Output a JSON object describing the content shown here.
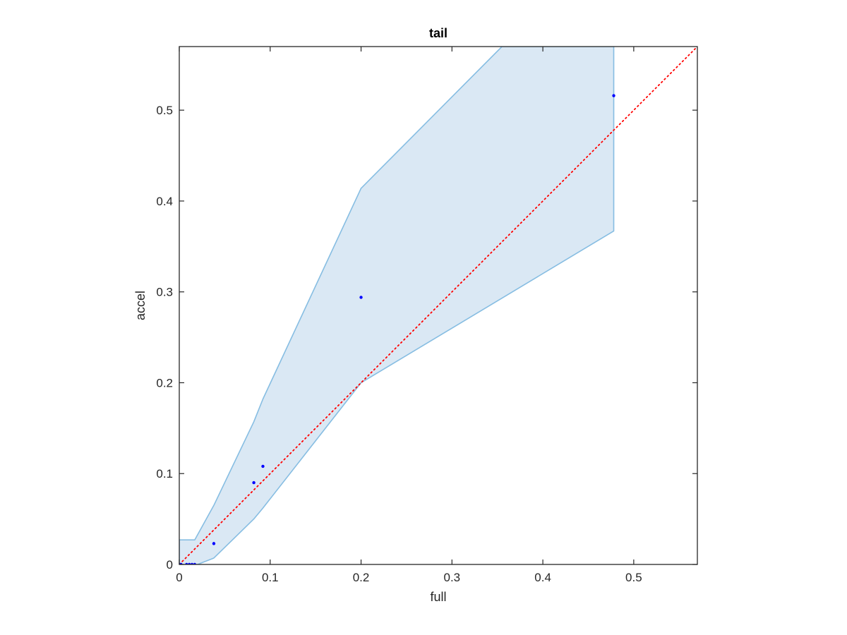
{
  "chart_data": {
    "type": "scatter",
    "title": "tail",
    "xlabel": "full",
    "ylabel": "accel",
    "xlim": [
      0,
      0.57
    ],
    "ylim": [
      0,
      0.57
    ],
    "xticks": [
      0,
      0.1,
      0.2,
      0.3,
      0.4,
      0.5
    ],
    "yticks": [
      0,
      0.1,
      0.2,
      0.3,
      0.4,
      0.5
    ],
    "xtick_labels": [
      "0",
      "0.1",
      "0.2",
      "0.3",
      "0.4",
      "0.5"
    ],
    "ytick_labels": [
      "0",
      "0.1",
      "0.2",
      "0.3",
      "0.4",
      "0.5"
    ],
    "grid": false,
    "colors": {
      "points": "#0000ff",
      "band_fill": "#dae8f4",
      "band_edge": "#86bde2",
      "diagonal": "#ff0000",
      "axes": "#262626"
    },
    "points": {
      "x": [
        0,
        0.002,
        0.008,
        0.011,
        0.014,
        0.017,
        0.038,
        0.082,
        0.092,
        0.2,
        0.478
      ],
      "y": [
        0,
        0,
        0,
        0,
        0,
        0,
        0.023,
        0.09,
        0.108,
        0.294,
        0.516
      ]
    },
    "band": {
      "upper": {
        "x": [
          0,
          0.017,
          0.038,
          0.082,
          0.092,
          0.2,
          0.355,
          0.478
        ],
        "y": [
          0.027,
          0.027,
          0.065,
          0.157,
          0.182,
          0.414,
          0.57,
          0.57
        ]
      },
      "lower": {
        "x": [
          0,
          0.02,
          0.038,
          0.082,
          0.092,
          0.2,
          0.478
        ],
        "y": [
          0,
          0,
          0.007,
          0.05,
          0.062,
          0.2,
          0.367
        ]
      }
    },
    "reference_line": {
      "style": "dotted",
      "x": [
        0,
        0.57
      ],
      "y": [
        0,
        0.57
      ]
    }
  }
}
